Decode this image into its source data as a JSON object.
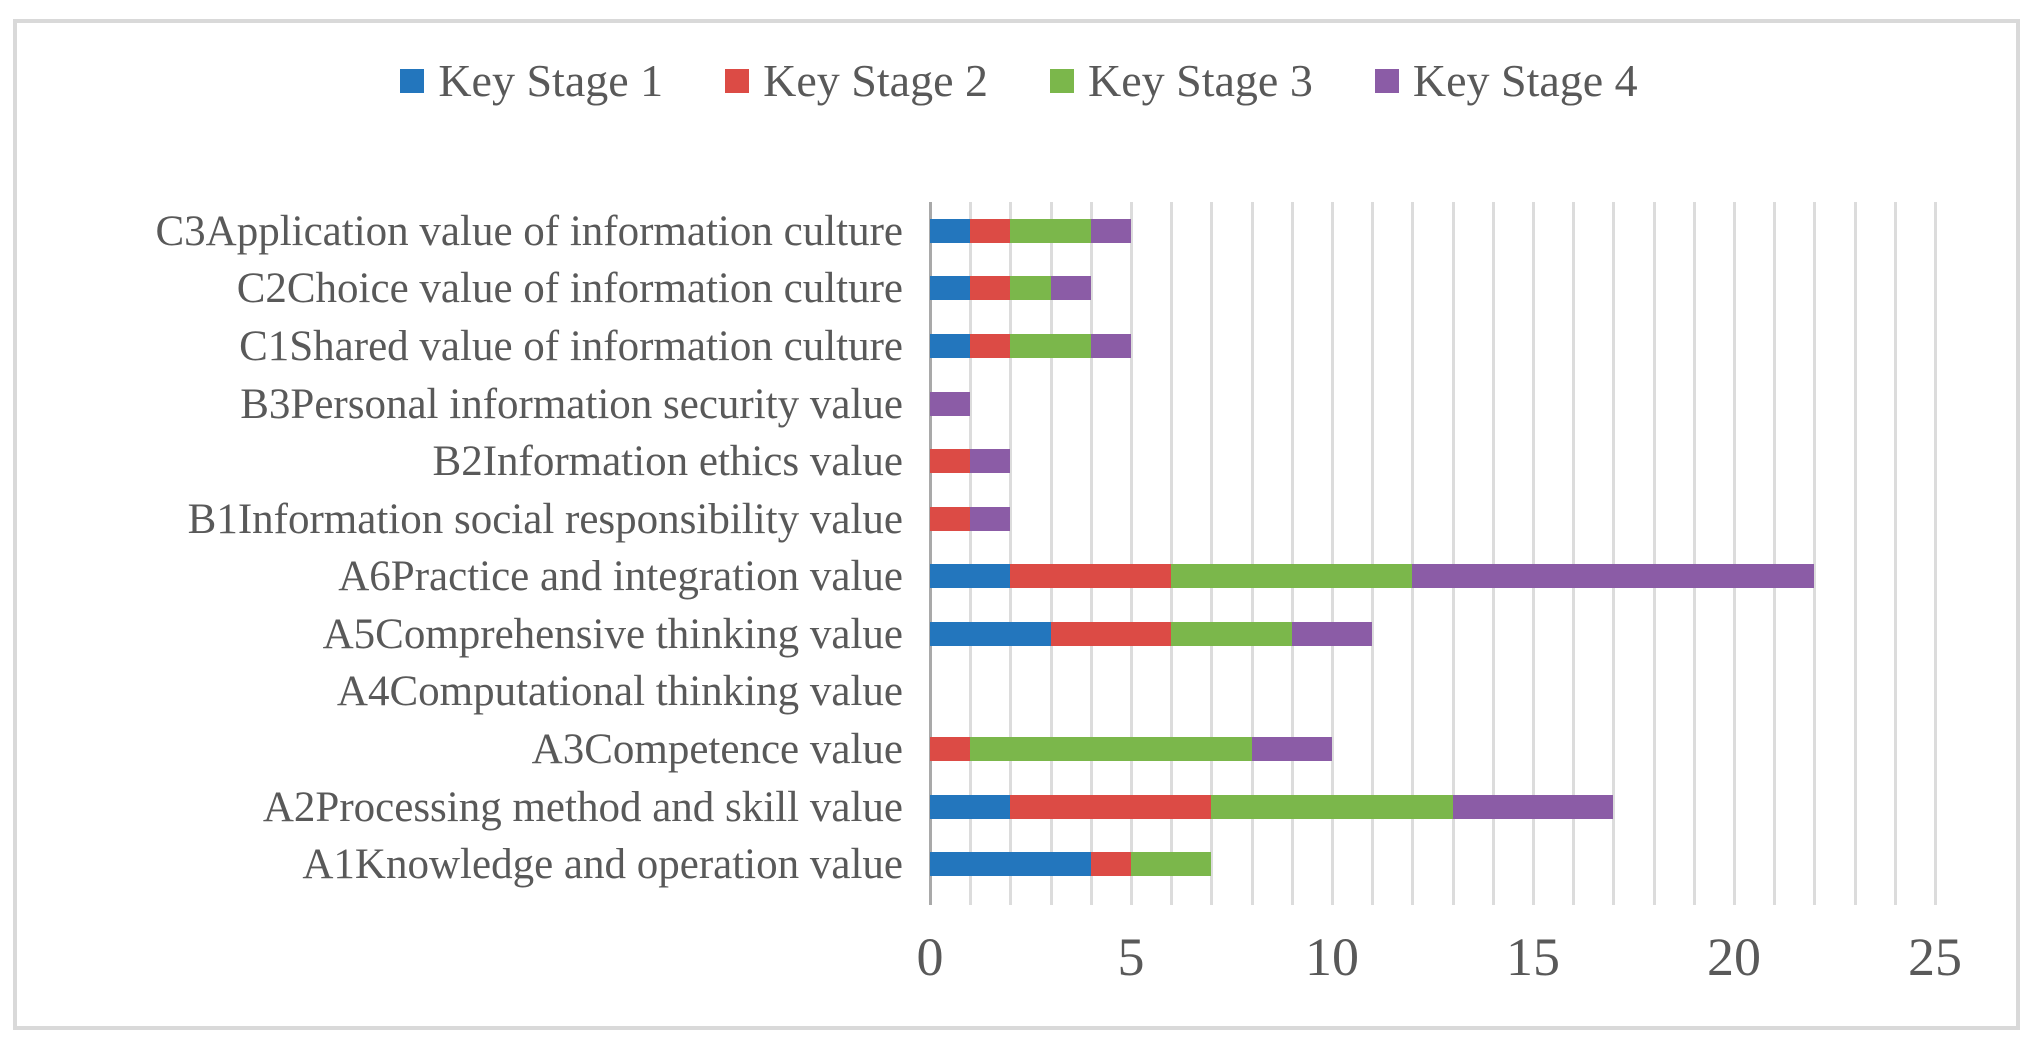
{
  "figure": {
    "background_color": "#ffffff",
    "frame_border_color": "#d9d9d9",
    "text_color": "#595959",
    "gridline_color": "#dcdcdc",
    "axis_line_color": "#a9a9a9"
  },
  "legend": {
    "position": "top",
    "items": [
      {
        "label": "Key Stage 1",
        "color": "#2376bd"
      },
      {
        "label": "Key Stage 2",
        "color": "#dc4b45"
      },
      {
        "label": "Key Stage 3",
        "color": "#7bb74b"
      },
      {
        "label": "Key Stage 4",
        "color": "#8b5ca6"
      }
    ]
  },
  "chart_data": {
    "type": "bar",
    "subtype": "horizontal-stacked",
    "title": "",
    "xlabel": "",
    "ylabel": "",
    "grid": true,
    "gridline_interval": 1,
    "xlim": [
      0,
      25
    ],
    "x_ticks": [
      0,
      5,
      10,
      15,
      20,
      25
    ],
    "legend_position": "top",
    "categories_top_to_bottom": [
      "C3Application value of information culture",
      "C2Choice value of information culture",
      "C1Shared value of information culture",
      "B3Personal information security value",
      "B2Information ethics value",
      "B1Information social responsibility value",
      "A6Practice and integration value",
      "A5Comprehensive thinking value",
      "A4Computational thinking value",
      "A3Competence value",
      "A2Processing method and skill value",
      "A1Knowledge and operation value"
    ],
    "series": [
      {
        "name": "Key Stage 1",
        "color": "#2376bd",
        "values": [
          1,
          1,
          1,
          0,
          0,
          0,
          2,
          3,
          0,
          0,
          2,
          4
        ]
      },
      {
        "name": "Key Stage 2",
        "color": "#dc4b45",
        "values": [
          1,
          1,
          1,
          0,
          1,
          1,
          4,
          3,
          0,
          1,
          5,
          1
        ]
      },
      {
        "name": "Key Stage 3",
        "color": "#7bb74b",
        "values": [
          2,
          1,
          2,
          0,
          0,
          0,
          6,
          3,
          0,
          7,
          6,
          2
        ]
      },
      {
        "name": "Key Stage 4",
        "color": "#8b5ca6",
        "values": [
          1,
          1,
          1,
          1,
          1,
          1,
          10,
          2,
          0,
          2,
          4,
          0
        ]
      }
    ],
    "stacked_totals": [
      5,
      4,
      5,
      1,
      2,
      2,
      22,
      11,
      0,
      10,
      17,
      7
    ]
  }
}
